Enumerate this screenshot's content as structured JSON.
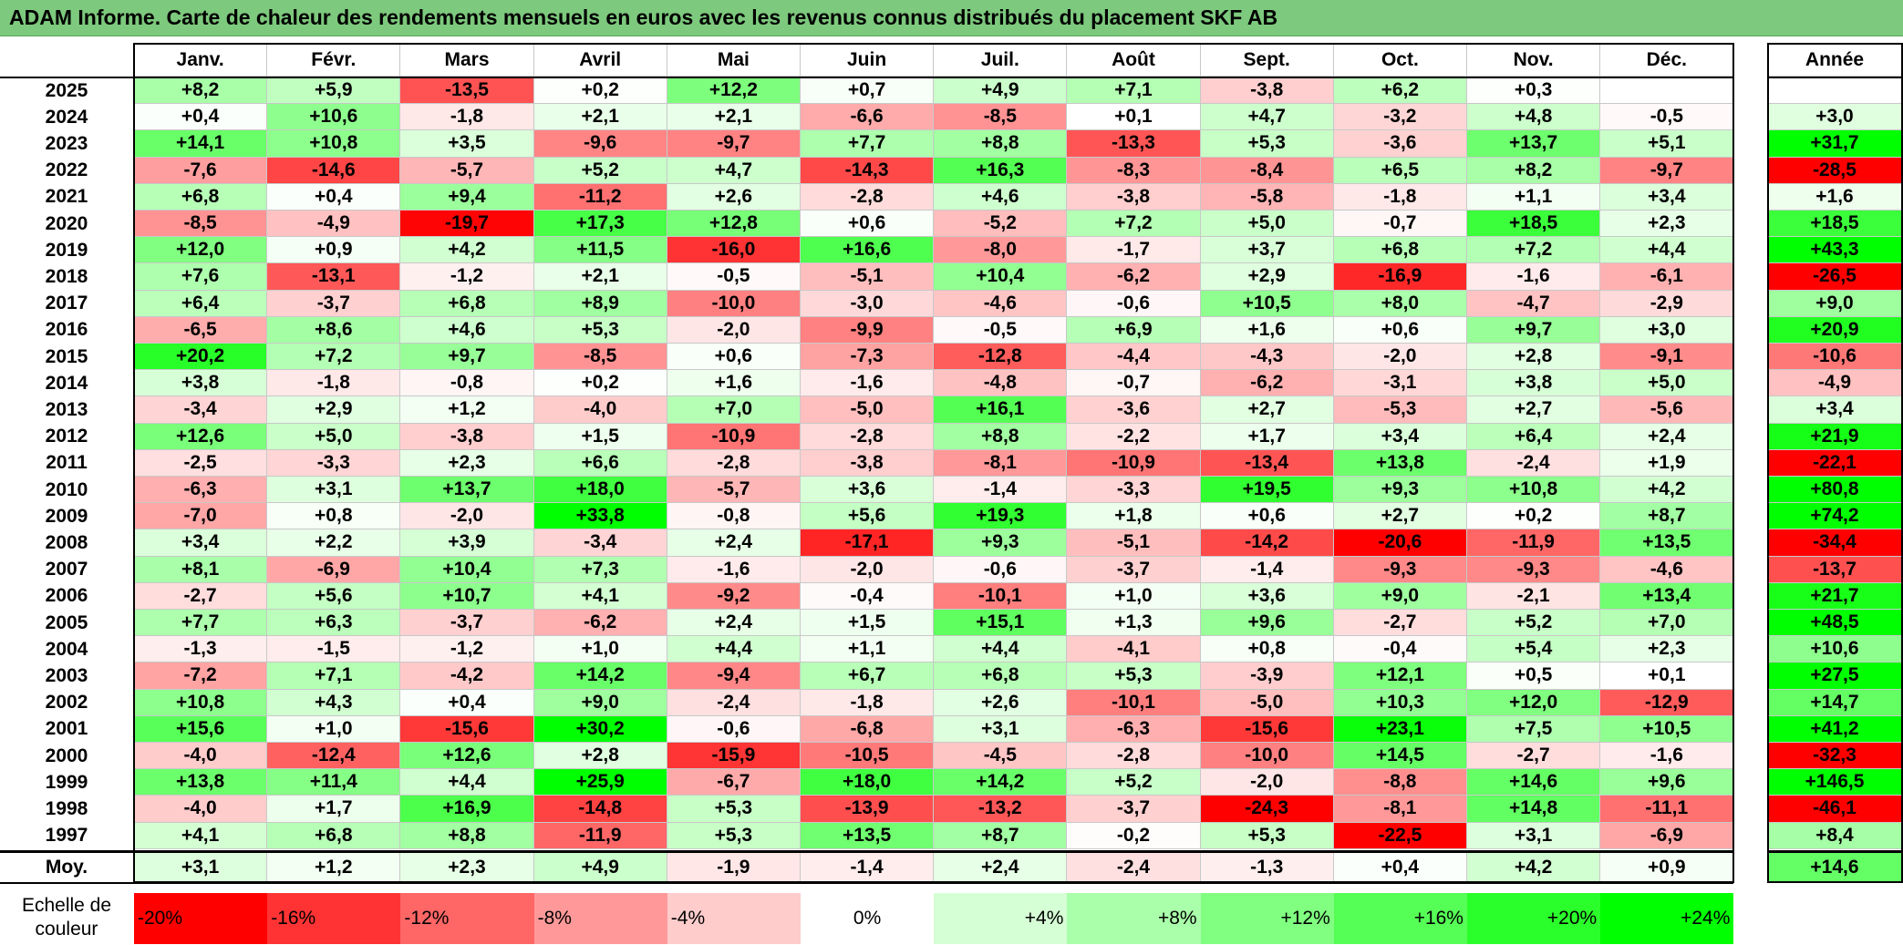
{
  "title": "ADAM Informe. Carte de chaleur des rendements mensuels en euros avec les revenus connus distribués du placement SKF AB",
  "months": [
    "Janv.",
    "Févr.",
    "Mars",
    "Avril",
    "Mai",
    "Juin",
    "Juil.",
    "Août",
    "Sept.",
    "Oct.",
    "Nov.",
    "Déc."
  ],
  "year_header": "Année",
  "avg_label": "Moy.",
  "scale_label_line1": "Echelle de",
  "scale_label_line2": "couleur",
  "colors": {
    "neg_max": "#ff0000",
    "zero": "#ffffff",
    "pos_max": "#00ff00",
    "title_bg": "#7dc97d"
  },
  "chart_data": {
    "type": "heatmap",
    "title": "ADAM Informe. Carte de chaleur des rendements mensuels en euros avec les revenus connus distribués du placement SKF AB",
    "unit": "%",
    "color_scale_min": -20,
    "color_scale_max": 24,
    "scale_ticks": [
      "-20%",
      "-16%",
      "-12%",
      "-8%",
      "-4%",
      "0%",
      "+4%",
      "+8%",
      "+12%",
      "+16%",
      "+20%",
      "+24%"
    ],
    "scale_values": [
      -20,
      -16,
      -12,
      -8,
      -4,
      0,
      4,
      8,
      12,
      16,
      20,
      24
    ],
    "rows": [
      {
        "year": "2025",
        "m": [
          "+8,2",
          "+5,9",
          "-13,5",
          "+0,2",
          "+12,2",
          "+0,7",
          "+4,9",
          "+7,1",
          "-3,8",
          "+6,2",
          "+0,3",
          ""
        ],
        "annual": ""
      },
      {
        "year": "2024",
        "m": [
          "+0,4",
          "+10,6",
          "-1,8",
          "+2,1",
          "+2,1",
          "-6,6",
          "-8,5",
          "+0,1",
          "+4,7",
          "-3,2",
          "+4,8",
          "-0,5"
        ],
        "annual": "+3,0"
      },
      {
        "year": "2023",
        "m": [
          "+14,1",
          "+10,8",
          "+3,5",
          "-9,6",
          "-9,7",
          "+7,7",
          "+8,8",
          "-13,3",
          "+5,3",
          "-3,6",
          "+13,7",
          "+5,1"
        ],
        "annual": "+31,7"
      },
      {
        "year": "2022",
        "m": [
          "-7,6",
          "-14,6",
          "-5,7",
          "+5,2",
          "+4,7",
          "-14,3",
          "+16,3",
          "-8,3",
          "-8,4",
          "+6,5",
          "+8,2",
          "-9,7"
        ],
        "annual": "-28,5"
      },
      {
        "year": "2021",
        "m": [
          "+6,8",
          "+0,4",
          "+9,4",
          "-11,2",
          "+2,6",
          "-2,8",
          "+4,6",
          "-3,8",
          "-5,8",
          "-1,8",
          "+1,1",
          "+3,4"
        ],
        "annual": "+1,6"
      },
      {
        "year": "2020",
        "m": [
          "-8,5",
          "-4,9",
          "-19,7",
          "+17,3",
          "+12,8",
          "+0,6",
          "-5,2",
          "+7,2",
          "+5,0",
          "-0,7",
          "+18,5",
          "+2,3"
        ],
        "annual": "+18,5"
      },
      {
        "year": "2019",
        "m": [
          "+12,0",
          "+0,9",
          "+4,2",
          "+11,5",
          "-16,0",
          "+16,6",
          "-8,0",
          "-1,7",
          "+3,7",
          "+6,8",
          "+7,2",
          "+4,4"
        ],
        "annual": "+43,3"
      },
      {
        "year": "2018",
        "m": [
          "+7,6",
          "-13,1",
          "-1,2",
          "+2,1",
          "-0,5",
          "-5,1",
          "+10,4",
          "-6,2",
          "+2,9",
          "-16,9",
          "-1,6",
          "-6,1"
        ],
        "annual": "-26,5"
      },
      {
        "year": "2017",
        "m": [
          "+6,4",
          "-3,7",
          "+6,8",
          "+8,9",
          "-10,0",
          "-3,0",
          "-4,6",
          "-0,6",
          "+10,5",
          "+8,0",
          "-4,7",
          "-2,9"
        ],
        "annual": "+9,0"
      },
      {
        "year": "2016",
        "m": [
          "-6,5",
          "+8,6",
          "+4,6",
          "+5,3",
          "-2,0",
          "-9,9",
          "-0,5",
          "+6,9",
          "+1,6",
          "+0,6",
          "+9,7",
          "+3,0"
        ],
        "annual": "+20,9"
      },
      {
        "year": "2015",
        "m": [
          "+20,2",
          "+7,2",
          "+9,7",
          "-8,5",
          "+0,6",
          "-7,3",
          "-12,8",
          "-4,4",
          "-4,3",
          "-2,0",
          "+2,8",
          "-9,1"
        ],
        "annual": "-10,6"
      },
      {
        "year": "2014",
        "m": [
          "+3,8",
          "-1,8",
          "-0,8",
          "+0,2",
          "+1,6",
          "-1,6",
          "-4,8",
          "-0,7",
          "-6,2",
          "-3,1",
          "+3,8",
          "+5,0"
        ],
        "annual": "-4,9"
      },
      {
        "year": "2013",
        "m": [
          "-3,4",
          "+2,9",
          "+1,2",
          "-4,0",
          "+7,0",
          "-5,0",
          "+16,1",
          "-3,6",
          "+2,7",
          "-5,3",
          "+2,7",
          "-5,6"
        ],
        "annual": "+3,4"
      },
      {
        "year": "2012",
        "m": [
          "+12,6",
          "+5,0",
          "-3,8",
          "+1,5",
          "-10,9",
          "-2,8",
          "+8,8",
          "-2,2",
          "+1,7",
          "+3,4",
          "+6,4",
          "+2,4"
        ],
        "annual": "+21,9"
      },
      {
        "year": "2011",
        "m": [
          "-2,5",
          "-3,3",
          "+2,3",
          "+6,6",
          "-2,8",
          "-3,8",
          "-8,1",
          "-10,9",
          "-13,4",
          "+13,8",
          "-2,4",
          "+1,9"
        ],
        "annual": "-22,1"
      },
      {
        "year": "2010",
        "m": [
          "-6,3",
          "+3,1",
          "+13,7",
          "+18,0",
          "-5,7",
          "+3,6",
          "-1,4",
          "-3,3",
          "+19,5",
          "+9,3",
          "+10,8",
          "+4,2"
        ],
        "annual": "+80,8"
      },
      {
        "year": "2009",
        "m": [
          "-7,0",
          "+0,8",
          "-2,0",
          "+33,8",
          "-0,8",
          "+5,6",
          "+19,3",
          "+1,8",
          "+0,6",
          "+2,7",
          "+0,2",
          "+8,7"
        ],
        "annual": "+74,2"
      },
      {
        "year": "2008",
        "m": [
          "+3,4",
          "+2,2",
          "+3,9",
          "-3,4",
          "+2,4",
          "-17,1",
          "+9,3",
          "-5,1",
          "-14,2",
          "-20,6",
          "-11,9",
          "+13,5"
        ],
        "annual": "-34,4"
      },
      {
        "year": "2007",
        "m": [
          "+8,1",
          "-6,9",
          "+10,4",
          "+7,3",
          "-1,6",
          "-2,0",
          "-0,6",
          "-3,7",
          "-1,4",
          "-9,3",
          "-9,3",
          "-4,6"
        ],
        "annual": "-13,7"
      },
      {
        "year": "2006",
        "m": [
          "-2,7",
          "+5,6",
          "+10,7",
          "+4,1",
          "-9,2",
          "-0,4",
          "-10,1",
          "+1,0",
          "+3,6",
          "+9,0",
          "-2,1",
          "+13,4"
        ],
        "annual": "+21,7"
      },
      {
        "year": "2005",
        "m": [
          "+7,7",
          "+6,3",
          "-3,7",
          "-6,2",
          "+2,4",
          "+1,5",
          "+15,1",
          "+1,3",
          "+9,6",
          "-2,7",
          "+5,2",
          "+7,0"
        ],
        "annual": "+48,5"
      },
      {
        "year": "2004",
        "m": [
          "-1,3",
          "-1,5",
          "-1,2",
          "+1,0",
          "+4,4",
          "+1,1",
          "+4,4",
          "-4,1",
          "+0,8",
          "-0,4",
          "+5,4",
          "+2,3"
        ],
        "annual": "+10,6"
      },
      {
        "year": "2003",
        "m": [
          "-7,2",
          "+7,1",
          "-4,2",
          "+14,2",
          "-9,4",
          "+6,7",
          "+6,8",
          "+5,3",
          "-3,9",
          "+12,1",
          "+0,5",
          "+0,1"
        ],
        "annual": "+27,5"
      },
      {
        "year": "2002",
        "m": [
          "+10,8",
          "+4,3",
          "+0,4",
          "+9,0",
          "-2,4",
          "-1,8",
          "+2,6",
          "-10,1",
          "-5,0",
          "+10,3",
          "+12,0",
          "-12,9"
        ],
        "annual": "+14,7"
      },
      {
        "year": "2001",
        "m": [
          "+15,6",
          "+1,0",
          "-15,6",
          "+30,2",
          "-0,6",
          "-6,8",
          "+3,1",
          "-6,3",
          "-15,6",
          "+23,1",
          "+7,5",
          "+10,5"
        ],
        "annual": "+41,2"
      },
      {
        "year": "2000",
        "m": [
          "-4,0",
          "-12,4",
          "+12,6",
          "+2,8",
          "-15,9",
          "-10,5",
          "-4,5",
          "-2,8",
          "-10,0",
          "+14,5",
          "-2,7",
          "-1,6"
        ],
        "annual": "-32,3"
      },
      {
        "year": "1999",
        "m": [
          "+13,8",
          "+11,4",
          "+4,4",
          "+25,9",
          "-6,7",
          "+18,0",
          "+14,2",
          "+5,2",
          "-2,0",
          "-8,8",
          "+14,6",
          "+9,6"
        ],
        "annual": "+146,5"
      },
      {
        "year": "1998",
        "m": [
          "-4,0",
          "+1,7",
          "+16,9",
          "-14,8",
          "+5,3",
          "-13,9",
          "-13,2",
          "-3,7",
          "-24,3",
          "-8,1",
          "+14,8",
          "-11,1"
        ],
        "annual": "-46,1"
      },
      {
        "year": "1997",
        "m": [
          "+4,1",
          "+6,8",
          "+8,8",
          "-11,9",
          "+5,3",
          "+13,5",
          "+8,7",
          "-0,2",
          "+5,3",
          "-22,5",
          "+3,1",
          "-6,9"
        ],
        "annual": "+8,4"
      }
    ],
    "average": {
      "m": [
        "+3,1",
        "+1,2",
        "+2,3",
        "+4,9",
        "-1,9",
        "-1,4",
        "+2,4",
        "-2,4",
        "-1,3",
        "+0,4",
        "+4,2",
        "+0,9"
      ],
      "annual": "+14,6"
    }
  }
}
